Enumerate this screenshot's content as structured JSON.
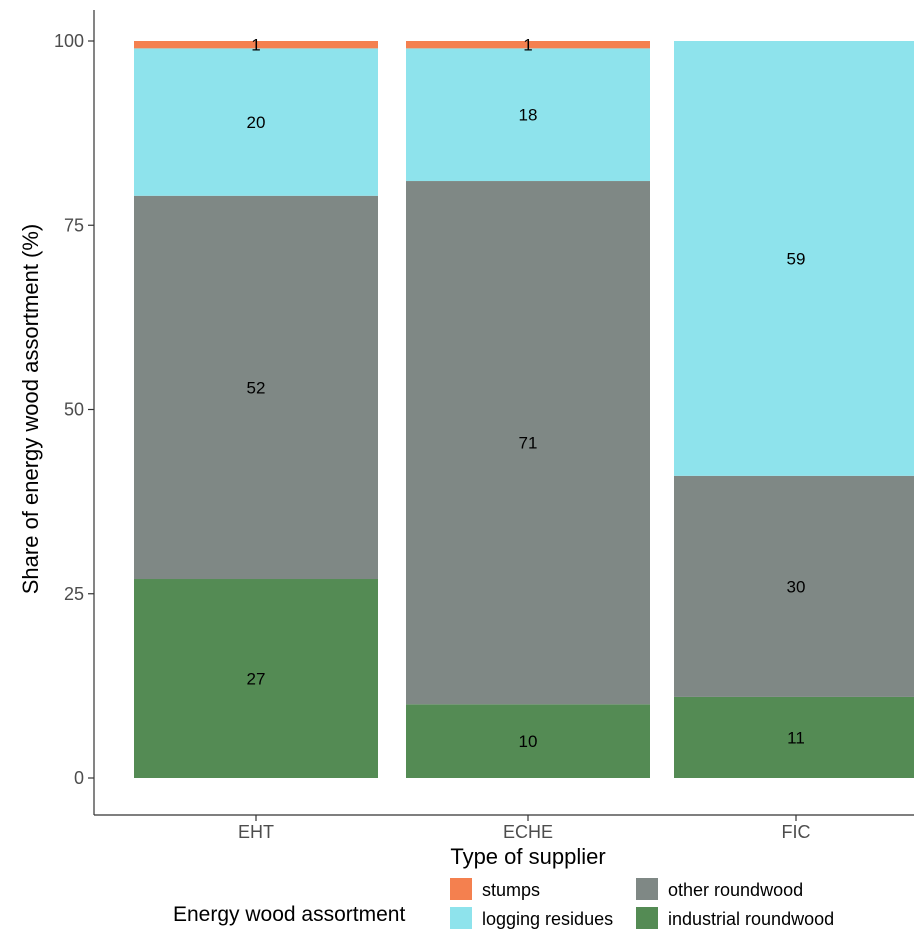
{
  "chart_data": {
    "type": "bar",
    "stacked": true,
    "categories": [
      "EHT",
      "ECHE",
      "FIC"
    ],
    "series": [
      {
        "name": "industrial roundwood",
        "values": [
          27,
          10,
          11
        ],
        "color": "#548b54"
      },
      {
        "name": "other roundwood",
        "values": [
          52,
          71,
          30
        ],
        "color": "#7f8885"
      },
      {
        "name": "logging residues",
        "values": [
          20,
          18,
          59
        ],
        "color": "#8ee3ec"
      },
      {
        "name": "stumps",
        "values": [
          1,
          1,
          0
        ],
        "color": "#f4804f"
      }
    ],
    "data_labels": [
      [
        "27",
        "52",
        "20",
        "1"
      ],
      [
        "10",
        "71",
        "18",
        "1"
      ],
      [
        "11",
        "30",
        "59",
        ""
      ]
    ],
    "xlabel": "Type of supplier",
    "ylabel": "Share of energy wood assortment (%)",
    "ylim": [
      0,
      100
    ],
    "yticks": [
      "0",
      "25",
      "50",
      "75",
      "100"
    ],
    "grid": false,
    "legend": {
      "title": "Energy wood assortment",
      "position": "bottom",
      "items": [
        "stumps",
        "logging residues",
        "other roundwood",
        "industrial roundwood"
      ]
    }
  }
}
